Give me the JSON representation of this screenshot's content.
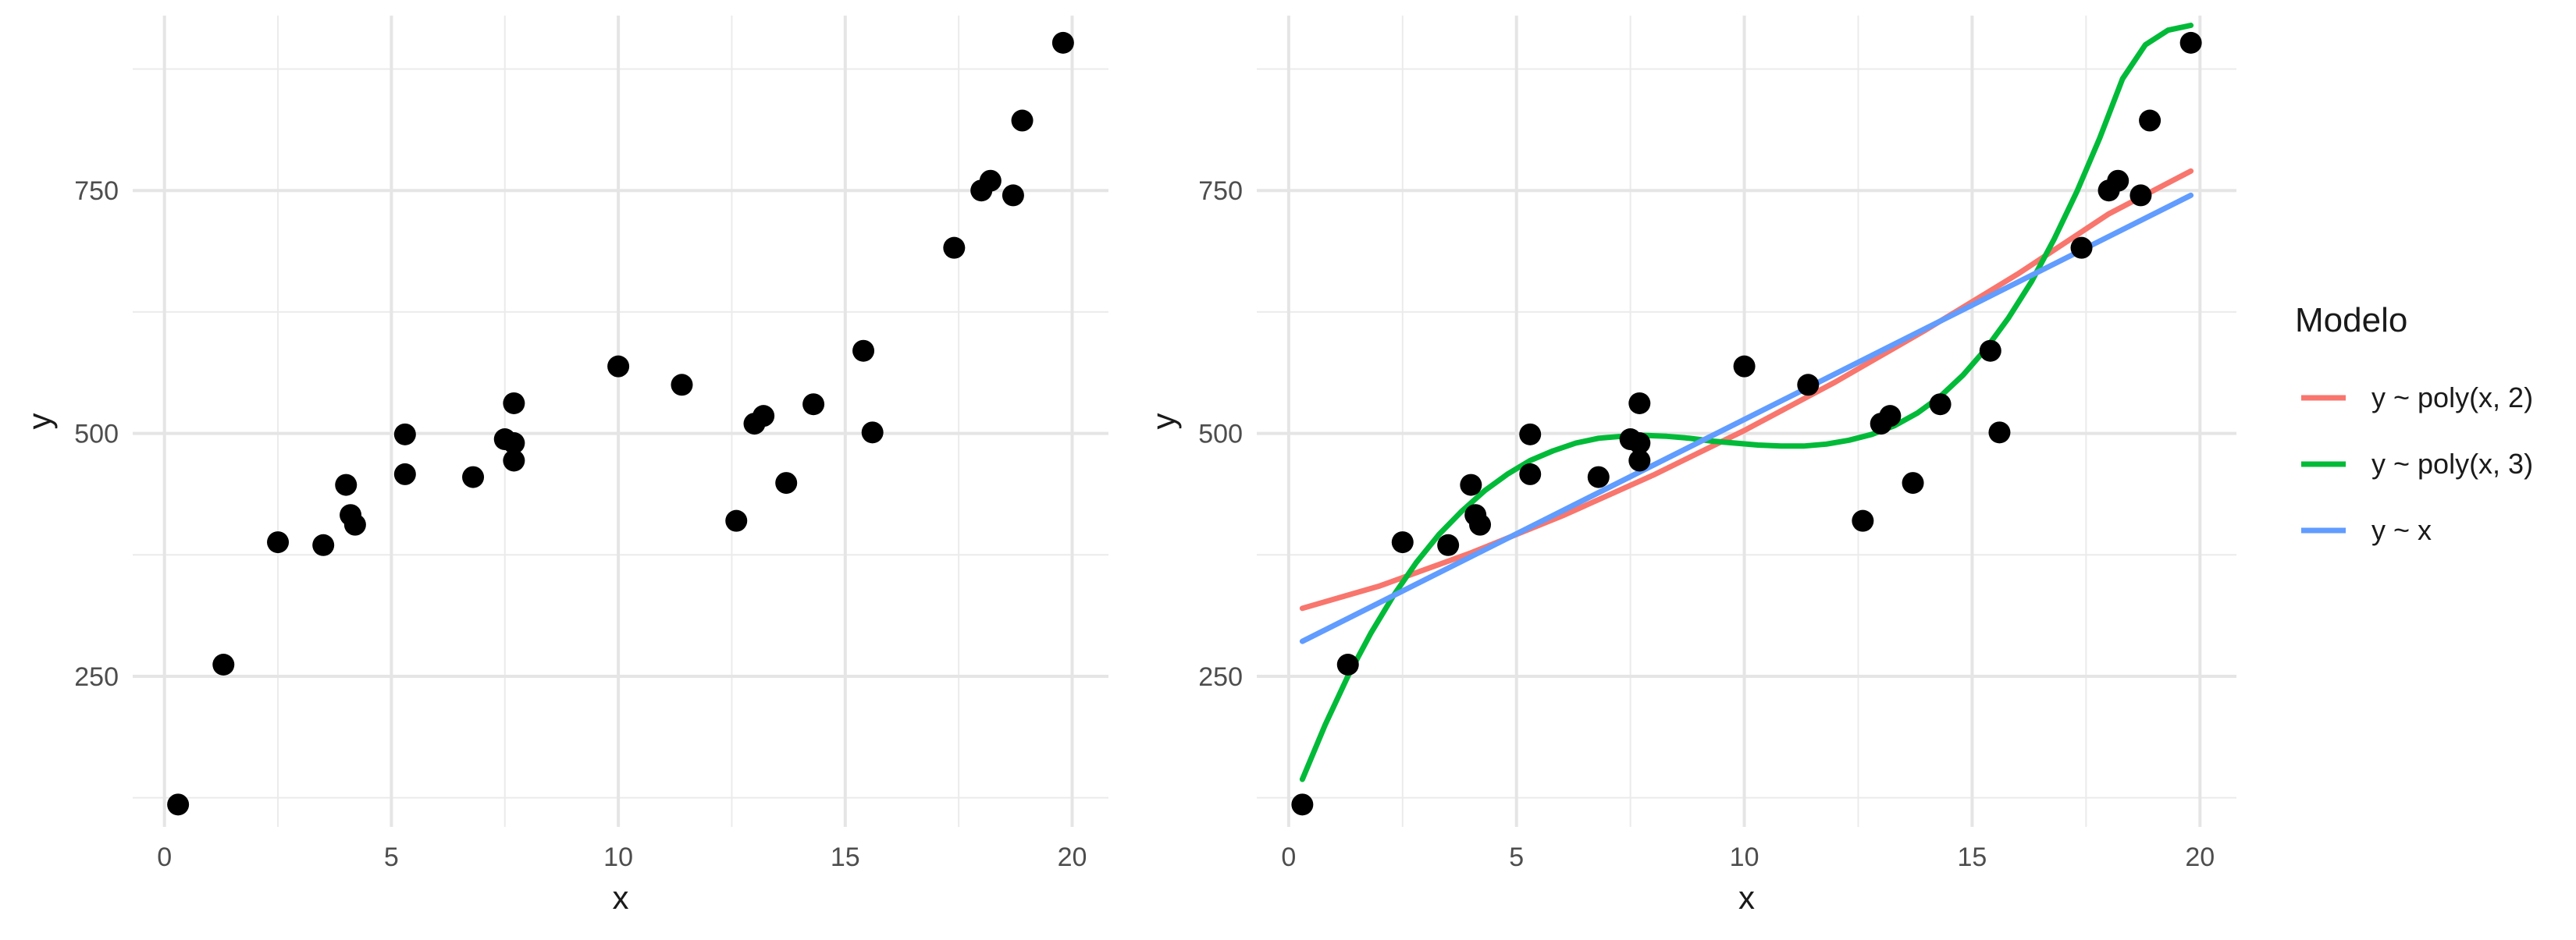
{
  "chart_data": [
    {
      "type": "scatter",
      "title": "",
      "xlabel": "x",
      "ylabel": "y",
      "xlim": [
        -0.7,
        20.8
      ],
      "ylim": [
        95,
        930
      ],
      "x_ticks": [
        0,
        5,
        10,
        15,
        20
      ],
      "y_ticks": [
        250,
        500,
        750
      ],
      "x_tick_labels": [
        "0",
        "5",
        "10",
        "15",
        "20"
      ],
      "y_tick_labels": [
        "250",
        "500",
        "750"
      ],
      "grid": true,
      "points": [
        [
          0.3,
          118
        ],
        [
          1.3,
          262
        ],
        [
          2.5,
          388
        ],
        [
          3.5,
          385
        ],
        [
          4.0,
          447
        ],
        [
          4.1,
          416
        ],
        [
          4.2,
          406
        ],
        [
          5.3,
          499
        ],
        [
          5.3,
          458
        ],
        [
          6.8,
          455
        ],
        [
          7.5,
          494
        ],
        [
          7.7,
          531
        ],
        [
          7.7,
          472
        ],
        [
          7.7,
          490
        ],
        [
          10.0,
          569
        ],
        [
          11.4,
          550
        ],
        [
          12.6,
          410
        ],
        [
          13.0,
          510
        ],
        [
          13.2,
          518
        ],
        [
          13.7,
          449
        ],
        [
          14.3,
          530
        ],
        [
          15.4,
          585
        ],
        [
          15.6,
          501
        ],
        [
          17.4,
          691
        ],
        [
          18.0,
          750
        ],
        [
          18.2,
          760
        ],
        [
          18.7,
          745
        ],
        [
          18.9,
          822
        ],
        [
          19.8,
          902
        ]
      ]
    },
    {
      "type": "line",
      "title": "",
      "xlabel": "x",
      "ylabel": "y",
      "xlim": [
        -0.7,
        20.8
      ],
      "ylim": [
        95,
        930
      ],
      "x_ticks": [
        0,
        5,
        10,
        15,
        20
      ],
      "y_ticks": [
        250,
        500,
        750
      ],
      "x_tick_labels": [
        "0",
        "5",
        "10",
        "15",
        "20"
      ],
      "y_tick_labels": [
        "250",
        "500",
        "750"
      ],
      "grid": true,
      "legend_position": "right",
      "legend_title": "Modelo",
      "points": [
        [
          0.3,
          118
        ],
        [
          1.3,
          262
        ],
        [
          2.5,
          388
        ],
        [
          3.5,
          385
        ],
        [
          4.0,
          447
        ],
        [
          4.1,
          416
        ],
        [
          4.2,
          406
        ],
        [
          5.3,
          499
        ],
        [
          5.3,
          458
        ],
        [
          6.8,
          455
        ],
        [
          7.5,
          494
        ],
        [
          7.7,
          531
        ],
        [
          7.7,
          472
        ],
        [
          7.7,
          490
        ],
        [
          10.0,
          569
        ],
        [
          11.4,
          550
        ],
        [
          12.6,
          410
        ],
        [
          13.0,
          510
        ],
        [
          13.2,
          518
        ],
        [
          13.7,
          449
        ],
        [
          14.3,
          530
        ],
        [
          15.4,
          585
        ],
        [
          15.6,
          501
        ],
        [
          17.4,
          691
        ],
        [
          18.0,
          750
        ],
        [
          18.2,
          760
        ],
        [
          18.7,
          745
        ],
        [
          18.9,
          822
        ],
        [
          19.8,
          902
        ]
      ],
      "series": [
        {
          "name": "y ~ poly(x, 2)",
          "color": "#F8766D",
          "x": [
            0.3,
            2,
            4,
            6,
            8,
            10,
            12,
            14,
            16,
            18,
            19.8
          ],
          "y": [
            320,
            343,
            377,
            415,
            457,
            503,
            553,
            607,
            664,
            726,
            770
          ]
        },
        {
          "name": "y ~ poly(x, 3)",
          "color": "#00BA38",
          "x": [
            0.3,
            0.8,
            1.3,
            1.8,
            2.3,
            2.8,
            3.3,
            3.8,
            4.3,
            4.8,
            5.3,
            5.8,
            6.3,
            6.8,
            7.3,
            7.8,
            8.3,
            8.8,
            9.3,
            9.8,
            10.3,
            10.8,
            11.3,
            11.8,
            12.3,
            12.8,
            13.3,
            13.8,
            14.3,
            14.8,
            15.3,
            15.8,
            16.3,
            16.8,
            17.3,
            17.8,
            18.3,
            18.8,
            19.3,
            19.8
          ],
          "y": [
            144,
            200,
            250,
            294,
            333,
            367,
            396,
            420,
            441,
            458,
            472,
            482,
            490,
            495,
            497,
            498,
            497,
            495,
            492,
            490,
            488,
            487,
            487,
            489,
            493,
            499,
            508,
            521,
            538,
            560,
            587,
            619,
            656,
            700,
            749,
            804,
            865,
            900,
            915,
            920
          ]
        },
        {
          "name": "y ~ x",
          "color": "#619CFF",
          "x": [
            0.3,
            19.8
          ],
          "y": [
            286,
            745
          ]
        }
      ]
    }
  ]
}
